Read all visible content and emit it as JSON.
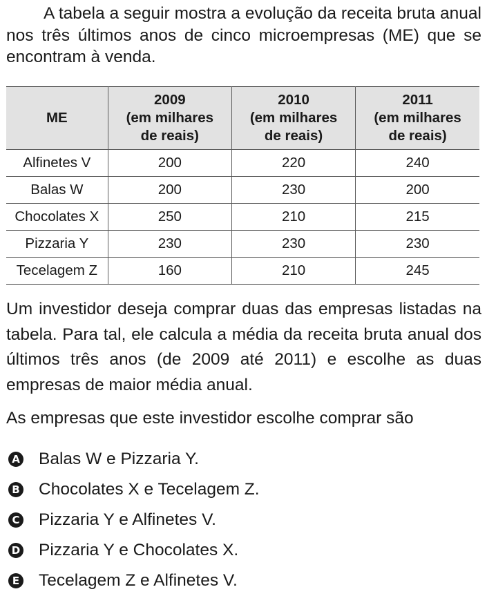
{
  "intro": "A tabela a seguir mostra a evolução da receita bruta anual nos três últimos anos de cinco microempresas (ME) que se encontram à venda.",
  "table": {
    "headers": [
      {
        "line1": "ME"
      },
      {
        "line1": "2009",
        "line2": "(em milhares",
        "line3": "de reais)"
      },
      {
        "line1": "2010",
        "line2": "(em milhares",
        "line3": "de reais)"
      },
      {
        "line1": "2011",
        "line2": "(em milhares",
        "line3": "de reais)"
      }
    ],
    "rows": [
      [
        "Alfinetes V",
        "200",
        "220",
        "240"
      ],
      [
        "Balas W",
        "200",
        "230",
        "200"
      ],
      [
        "Chocolates X",
        "250",
        "210",
        "215"
      ],
      [
        "Pizzaria Y",
        "230",
        "230",
        "230"
      ],
      [
        "Tecelagem Z",
        "160",
        "210",
        "245"
      ]
    ]
  },
  "paragraph": "Um investidor deseja comprar duas das empresas listadas na tabela. Para tal, ele calcula a média da receita bruta anual dos últimos três anos (de 2009 até 2011) e escolhe as duas empresas de maior média anual.",
  "question": "As empresas que este investidor escolhe comprar são",
  "options": [
    {
      "letter": "A",
      "text": "Balas W e Pizzaria Y."
    },
    {
      "letter": "B",
      "text": "Chocolates X e Tecelagem Z."
    },
    {
      "letter": "C",
      "text": "Pizzaria Y e Alfinetes V."
    },
    {
      "letter": "D",
      "text": "Pizzaria Y e Chocolates X."
    },
    {
      "letter": "E",
      "text": "Tecelagem Z e Alfinetes V."
    }
  ]
}
